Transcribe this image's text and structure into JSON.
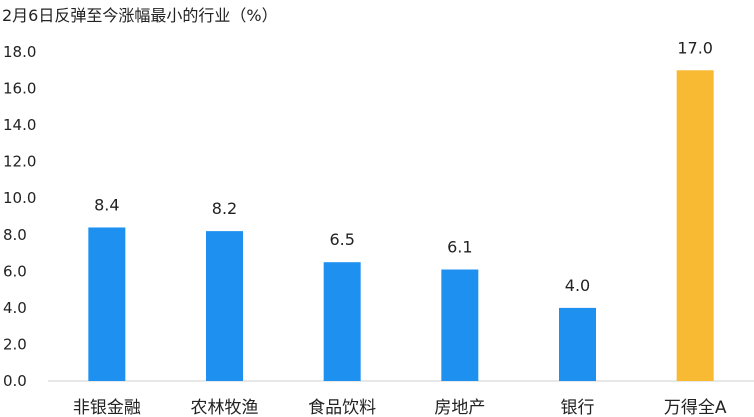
{
  "chart_data": {
    "type": "bar",
    "title": "2月6日反弹至今涨幅最小的行业（%）",
    "categories": [
      "非银金融",
      "农林牧渔",
      "食品饮料",
      "房地产",
      "银行",
      "万得全A"
    ],
    "values": [
      8.4,
      8.2,
      6.5,
      6.1,
      4.0,
      17.0
    ],
    "value_labels": [
      "8.4",
      "8.2",
      "6.5",
      "6.1",
      "4.0",
      "17.0"
    ],
    "ylim": [
      0,
      18
    ],
    "yticks": [
      "0.0",
      "2.0",
      "4.0",
      "6.0",
      "8.0",
      "10.0",
      "12.0",
      "14.0",
      "16.0",
      "18.0"
    ],
    "grid": false,
    "legend": "none",
    "colors": [
      "#1E90F0",
      "#1E90F0",
      "#1E90F0",
      "#1E90F0",
      "#1E90F0",
      "#F9BA33"
    ]
  }
}
